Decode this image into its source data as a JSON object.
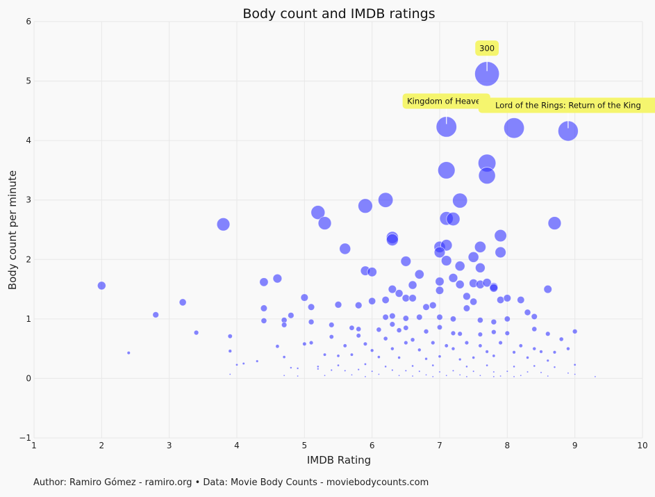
{
  "caption": "Author: Ramiro Gómez - ramiro.org • Data: Movie Body Counts - moviebodycounts.com",
  "chart_data": {
    "type": "scatter",
    "title": "Body count and IMDB ratings",
    "xlabel": "IMDB Rating",
    "ylabel": "Body count per minute",
    "xlim": [
      1,
      10
    ],
    "ylim": [
      -1,
      6
    ],
    "xticks": [
      "1",
      "2",
      "3",
      "4",
      "5",
      "6",
      "7",
      "8",
      "9",
      "10"
    ],
    "yticks": [
      "−1",
      "0",
      "1",
      "2",
      "3",
      "4",
      "5",
      "6"
    ],
    "grid": true,
    "marker_color": "#3333ff",
    "annotation_color": "#f5f56e",
    "size_note": "marker size grows with body count",
    "annotations": [
      {
        "label": "300",
        "x": 7.7,
        "y": 5.12
      },
      {
        "label": "Kingdom of Heaven",
        "x": 7.1,
        "y": 4.23
      },
      {
        "label": "Lord of the Rings: Return of the King",
        "x": 8.9,
        "y": 4.16
      }
    ],
    "points": [
      [
        7.7,
        5.12
      ],
      [
        7.1,
        4.23
      ],
      [
        8.1,
        4.21
      ],
      [
        8.9,
        4.16
      ],
      [
        7.7,
        3.62
      ],
      [
        7.1,
        3.5
      ],
      [
        7.7,
        3.41
      ],
      [
        7.3,
        2.99
      ],
      [
        6.2,
        3.0
      ],
      [
        5.9,
        2.9
      ],
      [
        3.8,
        2.59
      ],
      [
        5.2,
        2.79
      ],
      [
        5.3,
        2.61
      ],
      [
        7.1,
        2.69
      ],
      [
        7.2,
        2.68
      ],
      [
        8.7,
        2.61
      ],
      [
        6.3,
        2.37
      ],
      [
        6.3,
        2.33
      ],
      [
        7.9,
        2.4
      ],
      [
        7.0,
        2.21
      ],
      [
        7.1,
        2.24
      ],
      [
        7.6,
        2.21
      ],
      [
        5.6,
        2.18
      ],
      [
        7.9,
        2.12
      ],
      [
        7.0,
        2.12
      ],
      [
        7.1,
        1.98
      ],
      [
        6.5,
        1.97
      ],
      [
        7.5,
        2.04
      ],
      [
        7.3,
        1.89
      ],
      [
        5.9,
        1.81
      ],
      [
        6.0,
        1.79
      ],
      [
        7.6,
        1.86
      ],
      [
        6.7,
        1.75
      ],
      [
        2.0,
        1.56
      ],
      [
        4.4,
        1.62
      ],
      [
        4.6,
        1.68
      ],
      [
        6.6,
        1.57
      ],
      [
        7.2,
        1.69
      ],
      [
        7.0,
        1.63
      ],
      [
        7.3,
        1.58
      ],
      [
        7.5,
        1.6
      ],
      [
        7.6,
        1.58
      ],
      [
        7.7,
        1.61
      ],
      [
        7.8,
        1.54
      ],
      [
        8.6,
        1.5
      ],
      [
        6.3,
        1.5
      ],
      [
        7.0,
        1.48
      ],
      [
        7.4,
        1.38
      ],
      [
        7.9,
        1.32
      ],
      [
        8.0,
        1.35
      ],
      [
        8.2,
        1.32
      ],
      [
        6.4,
        1.43
      ],
      [
        5.0,
        1.36
      ],
      [
        3.2,
        1.28
      ],
      [
        6.0,
        1.3
      ],
      [
        6.2,
        1.32
      ],
      [
        6.5,
        1.35
      ],
      [
        6.6,
        1.35
      ],
      [
        7.5,
        1.29
      ],
      [
        7.8,
        1.52
      ],
      [
        5.1,
        1.2
      ],
      [
        5.5,
        1.24
      ],
      [
        5.8,
        1.23
      ],
      [
        6.9,
        1.23
      ],
      [
        7.4,
        1.18
      ],
      [
        6.8,
        1.2
      ],
      [
        8.3,
        1.11
      ],
      [
        4.4,
        1.18
      ],
      [
        2.8,
        1.07
      ],
      [
        4.8,
        1.06
      ],
      [
        6.2,
        1.03
      ],
      [
        6.3,
        1.05
      ],
      [
        6.5,
        1.01
      ],
      [
        6.7,
        1.03
      ],
      [
        7.0,
        1.03
      ],
      [
        7.2,
        1.0
      ],
      [
        7.6,
        0.98
      ],
      [
        7.8,
        0.95
      ],
      [
        8.0,
        1.0
      ],
      [
        8.4,
        1.04
      ],
      [
        5.1,
        0.95
      ],
      [
        4.4,
        0.97
      ],
      [
        4.7,
        0.98
      ],
      [
        5.4,
        0.9
      ],
      [
        6.3,
        0.91
      ],
      [
        7.0,
        0.86
      ],
      [
        8.4,
        0.83
      ],
      [
        9.0,
        0.79
      ],
      [
        4.7,
        0.9
      ],
      [
        3.4,
        0.77
      ],
      [
        5.7,
        0.85
      ],
      [
        5.8,
        0.83
      ],
      [
        6.1,
        0.82
      ],
      [
        6.4,
        0.81
      ],
      [
        6.5,
        0.85
      ],
      [
        6.8,
        0.79
      ],
      [
        7.2,
        0.76
      ],
      [
        7.3,
        0.75
      ],
      [
        7.6,
        0.74
      ],
      [
        7.8,
        0.78
      ],
      [
        8.0,
        0.76
      ],
      [
        8.6,
        0.75
      ],
      [
        8.8,
        0.66
      ],
      [
        3.9,
        0.71
      ],
      [
        5.4,
        0.7
      ],
      [
        5.8,
        0.72
      ],
      [
        6.2,
        0.67
      ],
      [
        6.5,
        0.6
      ],
      [
        6.6,
        0.65
      ],
      [
        6.9,
        0.6
      ],
      [
        7.1,
        0.55
      ],
      [
        7.4,
        0.6
      ],
      [
        7.6,
        0.55
      ],
      [
        7.9,
        0.6
      ],
      [
        8.2,
        0.55
      ],
      [
        8.4,
        0.5
      ],
      [
        8.9,
        0.5
      ],
      [
        4.6,
        0.54
      ],
      [
        5.0,
        0.58
      ],
      [
        5.1,
        0.6
      ],
      [
        5.6,
        0.55
      ],
      [
        5.9,
        0.58
      ],
      [
        6.0,
        0.47
      ],
      [
        6.3,
        0.5
      ],
      [
        6.7,
        0.48
      ],
      [
        7.2,
        0.5
      ],
      [
        7.7,
        0.45
      ],
      [
        8.1,
        0.44
      ],
      [
        8.5,
        0.45
      ],
      [
        8.7,
        0.44
      ],
      [
        3.9,
        0.46
      ],
      [
        2.4,
        0.43
      ],
      [
        4.7,
        0.36
      ],
      [
        5.3,
        0.4
      ],
      [
        5.5,
        0.38
      ],
      [
        5.7,
        0.4
      ],
      [
        6.1,
        0.36
      ],
      [
        6.4,
        0.35
      ],
      [
        6.8,
        0.33
      ],
      [
        7.0,
        0.37
      ],
      [
        7.3,
        0.32
      ],
      [
        7.5,
        0.35
      ],
      [
        7.8,
        0.38
      ],
      [
        8.3,
        0.35
      ],
      [
        8.6,
        0.3
      ],
      [
        4.3,
        0.29
      ],
      [
        4.1,
        0.25
      ],
      [
        4.0,
        0.23
      ],
      [
        5.2,
        0.2
      ],
      [
        5.5,
        0.22
      ],
      [
        5.9,
        0.24
      ],
      [
        6.2,
        0.2
      ],
      [
        6.6,
        0.21
      ],
      [
        6.9,
        0.22
      ],
      [
        7.4,
        0.2
      ],
      [
        7.7,
        0.22
      ],
      [
        8.1,
        0.2
      ],
      [
        8.4,
        0.21
      ],
      [
        8.7,
        0.19
      ],
      [
        9.0,
        0.23
      ],
      [
        4.8,
        0.18
      ],
      [
        4.9,
        0.17
      ],
      [
        5.2,
        0.16
      ],
      [
        5.4,
        0.14
      ],
      [
        5.6,
        0.13
      ],
      [
        5.8,
        0.15
      ],
      [
        6.0,
        0.12
      ],
      [
        6.3,
        0.14
      ],
      [
        6.5,
        0.13
      ],
      [
        6.7,
        0.12
      ],
      [
        7.0,
        0.11
      ],
      [
        7.2,
        0.13
      ],
      [
        7.5,
        0.12
      ],
      [
        7.8,
        0.11
      ],
      [
        8.0,
        0.12
      ],
      [
        8.3,
        0.11
      ],
      [
        8.5,
        0.1
      ],
      [
        8.9,
        0.09
      ],
      [
        3.9,
        0.07
      ],
      [
        4.7,
        0.05
      ],
      [
        5.3,
        0.05
      ],
      [
        5.7,
        0.06
      ],
      [
        6.1,
        0.07
      ],
      [
        6.4,
        0.05
      ],
      [
        6.8,
        0.06
      ],
      [
        7.1,
        0.05
      ],
      [
        7.6,
        0.05
      ],
      [
        7.9,
        0.04
      ],
      [
        8.2,
        0.05
      ],
      [
        8.6,
        0.04
      ],
      [
        9.0,
        0.07
      ],
      [
        9.3,
        0.03
      ],
      [
        4.9,
        0.04
      ],
      [
        5.9,
        0.03
      ],
      [
        6.9,
        0.03
      ],
      [
        7.4,
        0.03
      ],
      [
        8.1,
        0.03
      ],
      [
        6.6,
        0.04
      ],
      [
        7.3,
        0.06
      ],
      [
        7.8,
        0.03
      ]
    ]
  }
}
